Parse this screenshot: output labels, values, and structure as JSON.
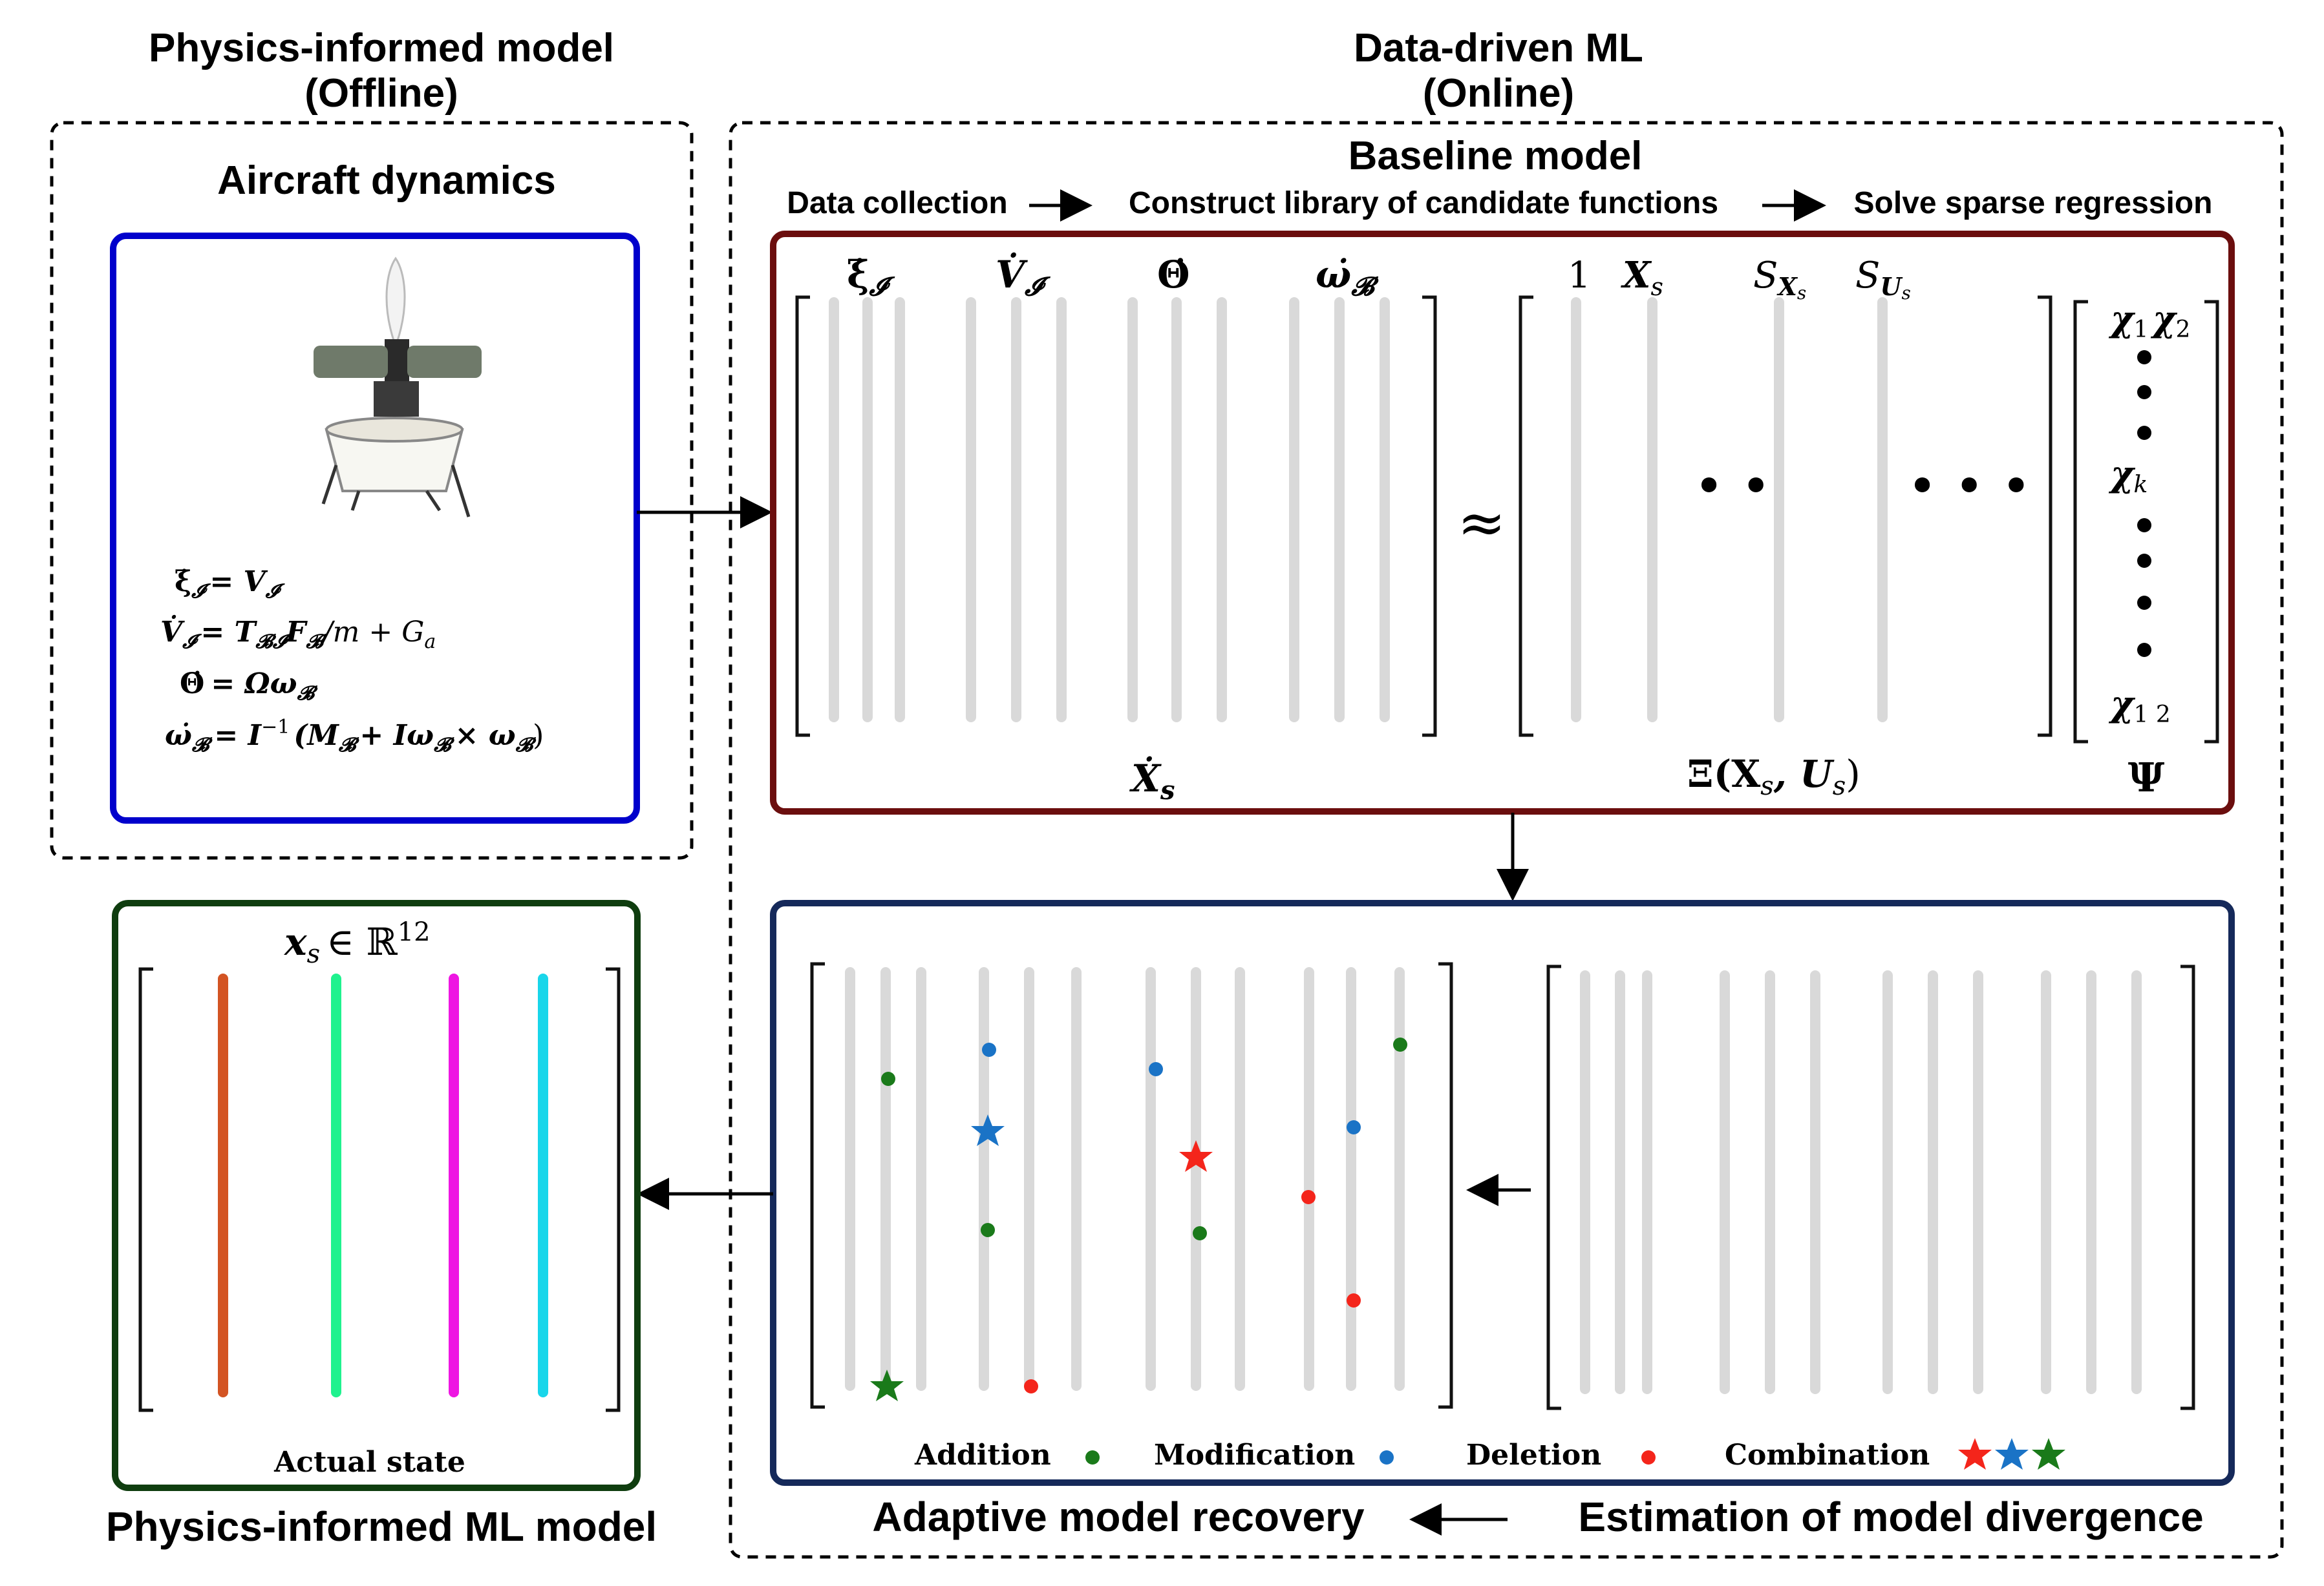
{
  "sections": {
    "offline_title_line1": "Physics-informed model",
    "offline_title_line2": "(Offline)",
    "online_title_line1": "Data-driven ML",
    "online_title_line2": "(Online)",
    "aircraft_dynamics": "Aircraft dynamics",
    "baseline_model": "Baseline model",
    "physics_ml_model": "Physics-informed ML model",
    "adaptive_recovery": "Adaptive model recovery",
    "estimation_divergence": "Estimation of model divergence"
  },
  "pipeline": {
    "step1": "Data collection",
    "step2": "Construct library of candidate functions",
    "step3": "Solve sparse regression"
  },
  "equations": {
    "eq1_lhs": "ξ̇",
    "eq1_sub": "𝓘",
    "eq1_rhs": "= V",
    "eq1_rhs_sub": "𝓘",
    "eq2_lhs": "V̇",
    "eq2_sub": "𝓘",
    "eq2_rhs": "= T",
    "eq2_rhs_sub": "𝓑𝓘",
    "eq2_rest": "F",
    "eq2_rest_sub": "𝓑",
    "eq2_tail": "/m + G",
    "eq2_tail_sub": "a",
    "eq3_lhs": "Θ̇",
    "eq3_rhs": "= Ωω",
    "eq3_sub": "𝓑",
    "eq4_lhs": "ω̇",
    "eq4_sub": "𝓑",
    "eq4_rhs": "= I",
    "eq4_sup": "−1",
    "eq4_rest": "(M",
    "eq4_rest_sub": "𝓑",
    "eq4_tail": "+ Iω",
    "eq4_tail_sub": "𝓑",
    "eq4_tail2": "× ω",
    "eq4_tail2_sub": "𝓑",
    "eq4_end": ")"
  },
  "baseline": {
    "col1": "ξ̇",
    "col1_sub": "𝓘",
    "col2": "V̇",
    "col2_sub": "𝓘",
    "col3": "Θ̇",
    "col4": "ω̇",
    "col4_sub": "𝓑",
    "lib1": "1",
    "lib2": "X",
    "lib2_sub": "s",
    "lib3": "S",
    "lib3_sub": "X",
    "lib3_subsub": "s",
    "lib4": "S",
    "lib4_sub": "U",
    "lib4_subsub": "s",
    "approx": "≈",
    "xdot_label": "Ẋ",
    "xdot_sub": "s",
    "xi_label": "Ξ(X",
    "xi_sub1": "s",
    "xi_mid": ", U",
    "xi_sub2": "s",
    "xi_end": ")",
    "psi_label": "Ψ",
    "chi1": "χ",
    "chi1_sub": "1",
    "chi2": "χ",
    "chi2_sub": "2",
    "chik": "χ",
    "chik_sub": "k",
    "chi12": "χ",
    "chi12_sub": "1 2",
    "dots_mid": "• •",
    "dots_right": "• • •"
  },
  "state": {
    "label": "x",
    "sub": "s",
    "in": "∈ ℝ",
    "sup": "12",
    "caption": "Actual state",
    "colors": [
      "#d35423",
      "#1ff28e",
      "#ee16e2",
      "#19d6ea"
    ]
  },
  "legend": {
    "addition": "Addition",
    "modification": "Modification",
    "deletion": "Deletion",
    "combination": "Combination",
    "addition_color": "#1a7a1a",
    "modification_color": "#1a73c6",
    "deletion_color": "#f4251b"
  },
  "box_colors": {
    "aircraft": "#0000cc",
    "baseline": "#6b0e0e",
    "adaptive": "#15295a",
    "state": "#0f3d0f"
  }
}
